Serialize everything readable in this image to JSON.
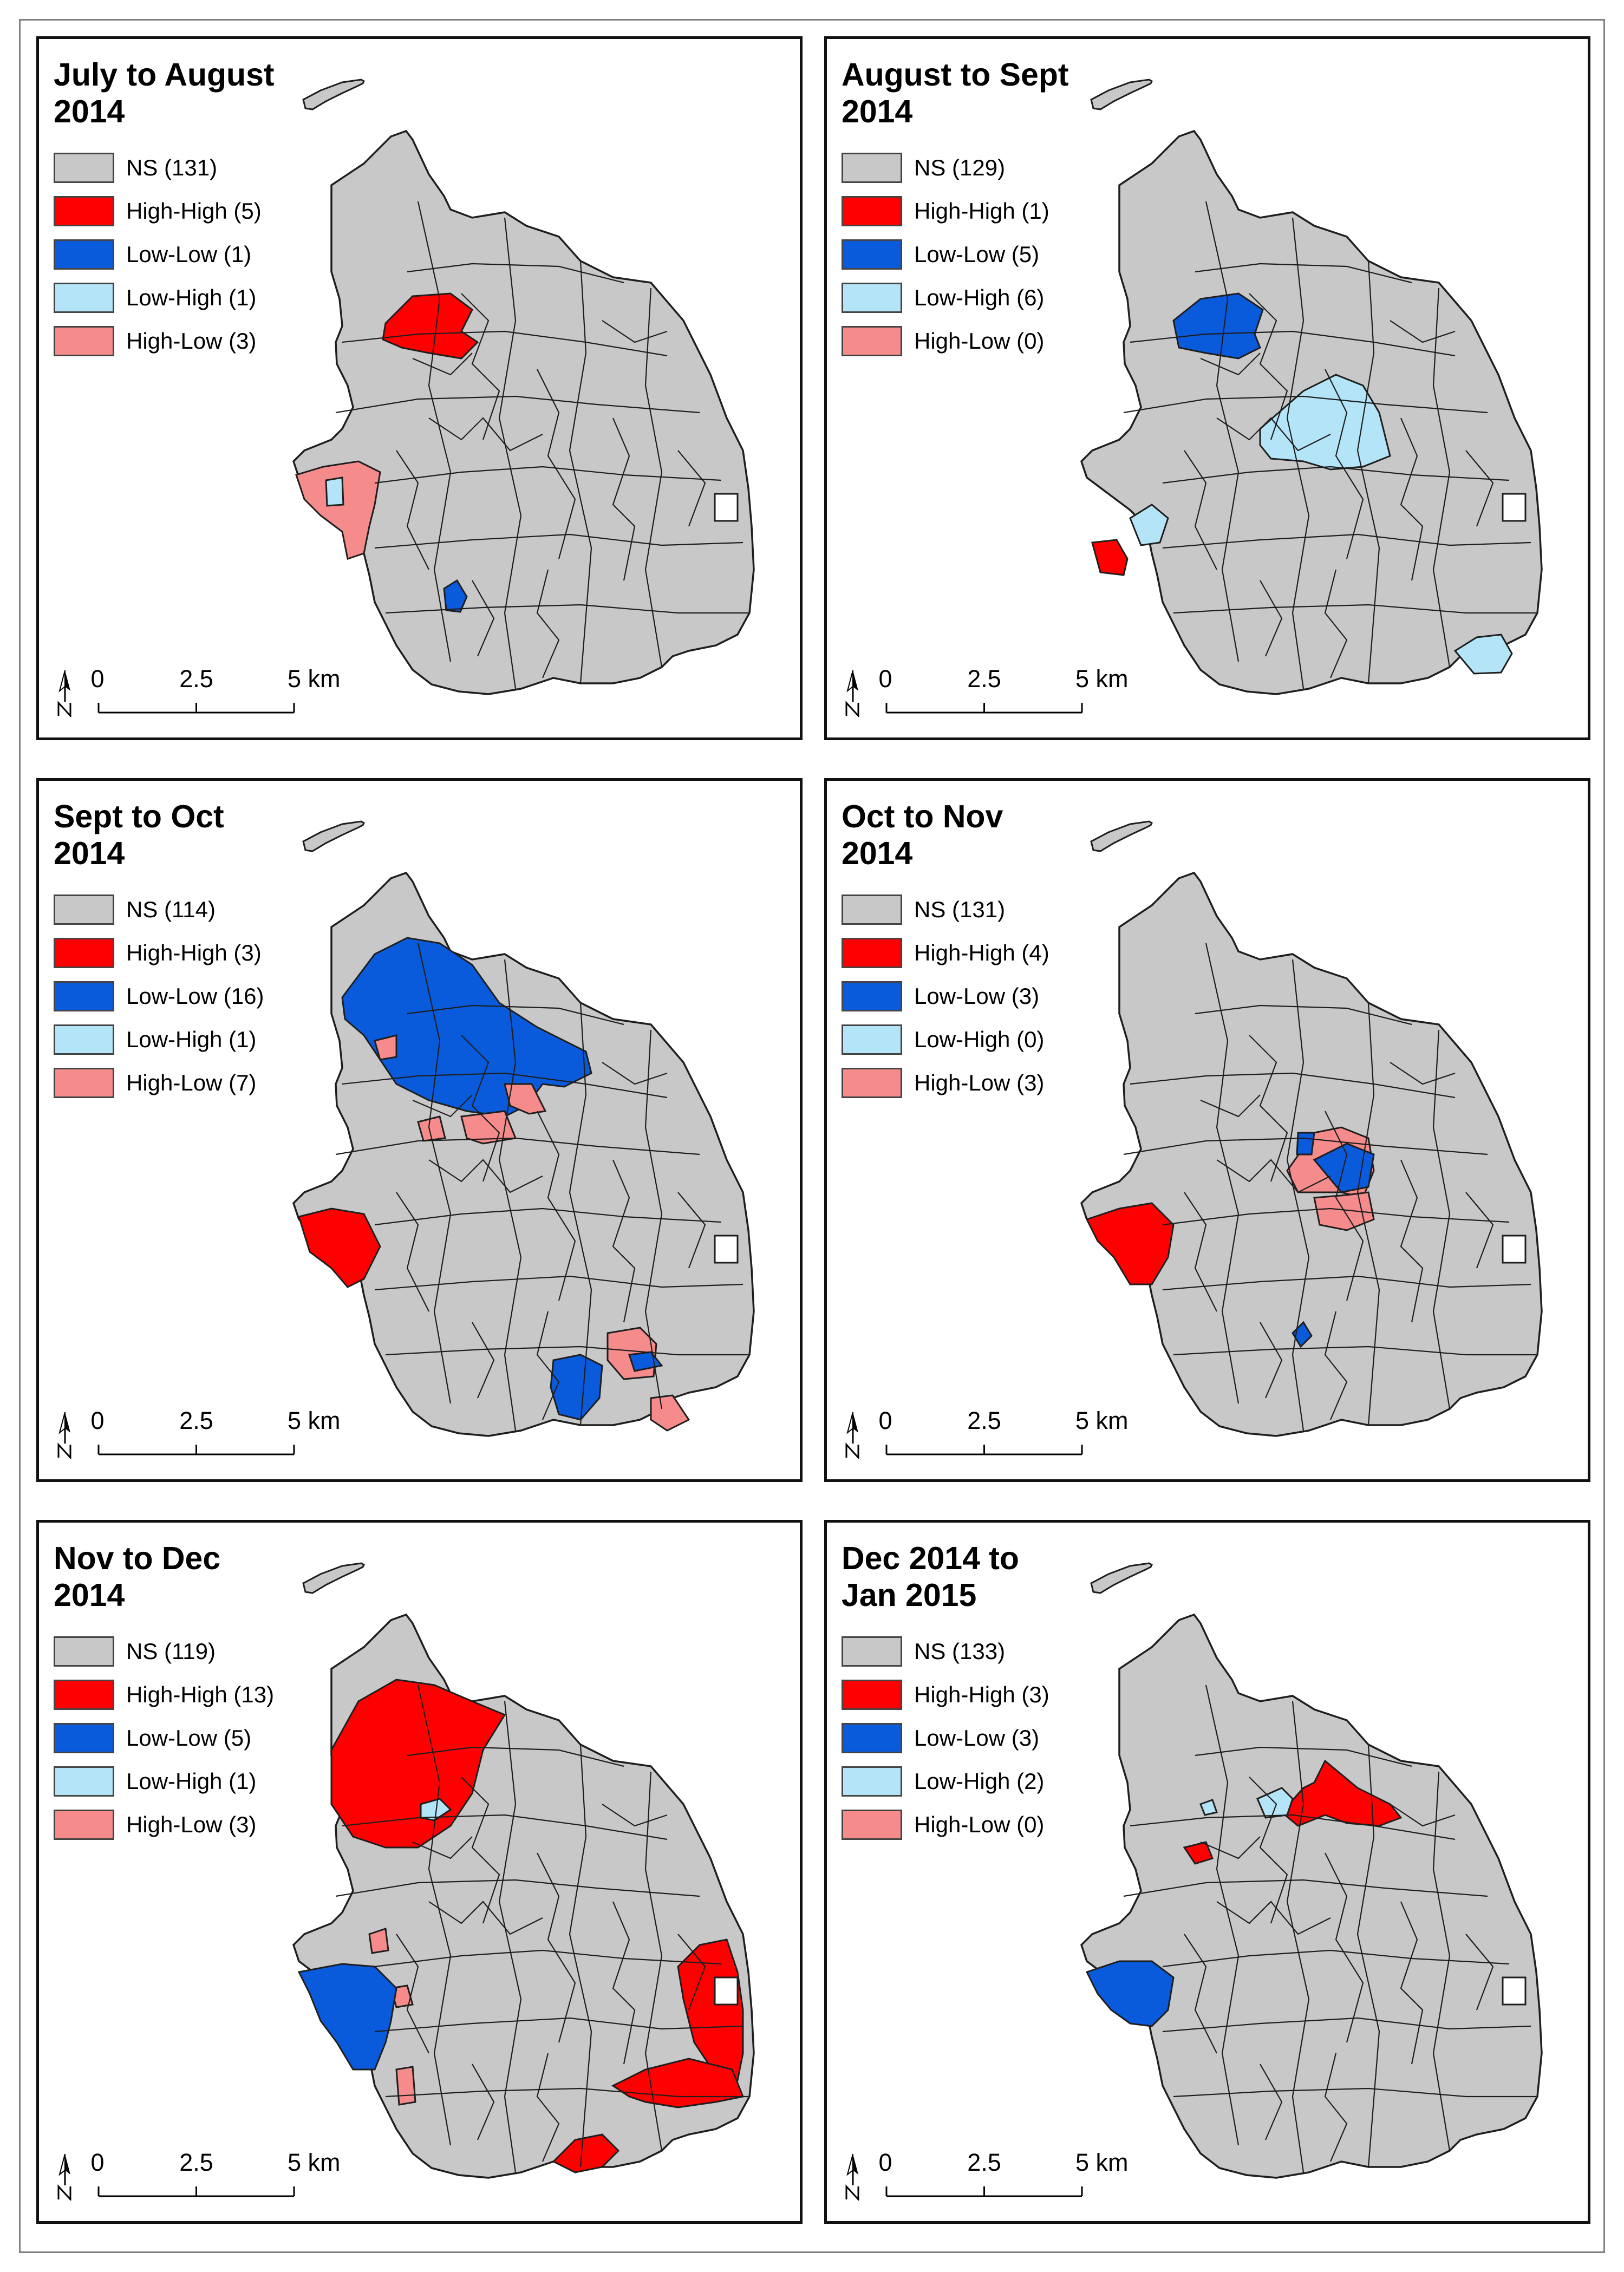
{
  "colors": {
    "NS": "#c8c8c8",
    "High-High": "#ff0000",
    "Low-Low": "#0a5adc",
    "Low-High": "#b4e4f7",
    "High-Low": "#f58b8b",
    "boundary": "#1e1e1e"
  },
  "icons": {
    "north": "north-arrow-icon"
  },
  "scalebar": {
    "ticks": [
      "0",
      "2.5",
      "5 km"
    ]
  },
  "panels": [
    {
      "title_lines": [
        "July to August",
        "2014"
      ],
      "legend": [
        {
          "class": "NS",
          "label": "NS (131)"
        },
        {
          "class": "High-High",
          "label": "High-High (5)"
        },
        {
          "class": "Low-Low",
          "label": "Low-Low (1)"
        },
        {
          "class": "Low-High",
          "label": "Low-High (1)"
        },
        {
          "class": "High-Low",
          "label": "High-Low (3)"
        }
      ]
    },
    {
      "title_lines": [
        "August to Sept",
        "2014"
      ],
      "legend": [
        {
          "class": "NS",
          "label": "NS (129)"
        },
        {
          "class": "High-High",
          "label": "High-High (1)"
        },
        {
          "class": "Low-Low",
          "label": "Low-Low (5)"
        },
        {
          "class": "Low-High",
          "label": "Low-High (6)"
        },
        {
          "class": "High-Low",
          "label": "High-Low (0)"
        }
      ]
    },
    {
      "title_lines": [
        "Sept to Oct",
        "2014"
      ],
      "legend": [
        {
          "class": "NS",
          "label": "NS (114)"
        },
        {
          "class": "High-High",
          "label": "High-High (3)"
        },
        {
          "class": "Low-Low",
          "label": "Low-Low (16)"
        },
        {
          "class": "Low-High",
          "label": "Low-High (1)"
        },
        {
          "class": "High-Low",
          "label": "High-Low (7)"
        }
      ]
    },
    {
      "title_lines": [
        "Oct to Nov",
        "2014"
      ],
      "legend": [
        {
          "class": "NS",
          "label": "NS (131)"
        },
        {
          "class": "High-High",
          "label": "High-High (4)"
        },
        {
          "class": "Low-Low",
          "label": "Low-Low (3)"
        },
        {
          "class": "Low-High",
          "label": "Low-High (0)"
        },
        {
          "class": "High-Low",
          "label": "High-Low (3)"
        }
      ]
    },
    {
      "title_lines": [
        "Nov to Dec",
        "2014"
      ],
      "legend": [
        {
          "class": "NS",
          "label": "NS (119)"
        },
        {
          "class": "High-High",
          "label": "High-High (13)"
        },
        {
          "class": "Low-Low",
          "label": "Low-Low (5)"
        },
        {
          "class": "Low-High",
          "label": "Low-High (1)"
        },
        {
          "class": "High-Low",
          "label": "High-Low (3)"
        }
      ]
    },
    {
      "title_lines": [
        "Dec 2014 to",
        "Jan 2015"
      ],
      "legend": [
        {
          "class": "NS",
          "label": "NS (133)"
        },
        {
          "class": "High-High",
          "label": "High-High (3)"
        },
        {
          "class": "Low-Low",
          "label": "Low-Low (3)"
        },
        {
          "class": "Low-High",
          "label": "Low-High (2)"
        },
        {
          "class": "High-Low",
          "label": "High-Low (0)"
        }
      ]
    }
  ]
}
